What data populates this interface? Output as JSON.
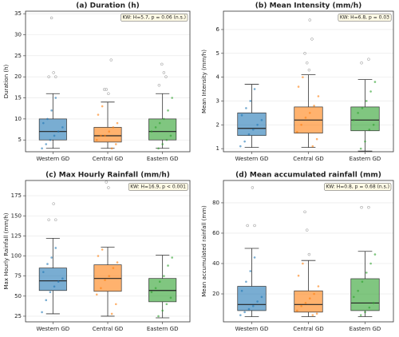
{
  "chart_data": [
    {
      "type": "box",
      "title": "(a) Duration (h)",
      "ylabel": "Duration (h)",
      "annotation": "KW: H=5.7, p = 0.06 (n.s.)",
      "categories": [
        "Western GD",
        "Central GD",
        "Eastern GD"
      ],
      "colors": [
        "#1f77b4",
        "#ff7f0e",
        "#2ca02c"
      ],
      "ylim": [
        2.2,
        35.6
      ],
      "yticks": [
        5,
        10,
        15,
        20,
        25,
        30,
        35
      ],
      "grid": true,
      "boxes": [
        {
          "whislo": 3,
          "q1": 5,
          "med": 7,
          "q3": 10,
          "whishi": 16,
          "outliers": [
            20,
            20,
            21,
            34
          ],
          "points": [
            3,
            4,
            5,
            6,
            7,
            8,
            9,
            10,
            12,
            15
          ]
        },
        {
          "whislo": 3,
          "q1": 4.5,
          "med": 6,
          "q3": 8,
          "whishi": 14,
          "outliers": [
            16,
            17,
            17,
            24
          ],
          "points": [
            3,
            4,
            5,
            6,
            6,
            7,
            8,
            9,
            11,
            13
          ]
        },
        {
          "whislo": 3,
          "q1": 5,
          "med": 7,
          "q3": 10,
          "whishi": 16,
          "outliers": [
            18,
            20,
            21,
            23
          ],
          "points": [
            3,
            4,
            5,
            6,
            7,
            8,
            9,
            10,
            12,
            15
          ]
        }
      ]
    },
    {
      "type": "box",
      "title": "(b) Mean Intensity (mm/h)",
      "ylabel": "Mean Intensity (mm/h)",
      "annotation": "KW: H=6.8, p = 0.03",
      "categories": [
        "Western GD",
        "Central GD",
        "Eastern GD"
      ],
      "colors": [
        "#1f77b4",
        "#ff7f0e",
        "#2ca02c"
      ],
      "ylim": [
        0.87,
        6.77
      ],
      "yticks": [
        1,
        2,
        3,
        4,
        5,
        6
      ],
      "grid": true,
      "boxes": [
        {
          "whislo": 1.05,
          "q1": 1.55,
          "med": 1.85,
          "q3": 2.5,
          "whishi": 3.7,
          "outliers": [],
          "points": [
            1.1,
            1.3,
            1.6,
            1.8,
            2.0,
            2.2,
            2.4,
            2.7,
            3.0,
            3.5
          ]
        },
        {
          "whislo": 1.05,
          "q1": 1.65,
          "med": 2.2,
          "q3": 2.75,
          "whishi": 4.1,
          "outliers": [
            4.3,
            4.6,
            5.0,
            5.6,
            6.4
          ],
          "points": [
            1.1,
            1.4,
            1.7,
            2.0,
            2.3,
            2.5,
            2.8,
            3.2,
            3.6,
            4.0
          ]
        },
        {
          "whislo": 0.9,
          "q1": 1.75,
          "med": 2.2,
          "q3": 2.75,
          "whishi": 3.9,
          "outliers": [
            4.6,
            4.75
          ],
          "points": [
            1.0,
            1.3,
            1.8,
            2.0,
            2.2,
            2.5,
            2.7,
            3.0,
            3.4,
            3.8
          ]
        }
      ]
    },
    {
      "type": "box",
      "title": "(c) Max Hourly Rainfall (mm/h)",
      "ylabel": "Max Hourly Rainfall (mm/h)",
      "annotation": "KW: H=16.9, p < 0.001",
      "categories": [
        "Western GD",
        "Central GD",
        "Eastern GD"
      ],
      "colors": [
        "#1f77b4",
        "#ff7f0e",
        "#2ca02c"
      ],
      "ylim": [
        18,
        194
      ],
      "yticks": [
        25,
        50,
        75,
        100,
        125,
        150,
        175
      ],
      "grid": true,
      "boxes": [
        {
          "whislo": 28,
          "q1": 57,
          "med": 69,
          "q3": 85,
          "whishi": 122,
          "outliers": [
            145,
            145,
            165
          ],
          "points": [
            30,
            45,
            55,
            62,
            68,
            72,
            80,
            90,
            98,
            110
          ]
        },
        {
          "whislo": 25,
          "q1": 56,
          "med": 72,
          "q3": 89,
          "whishi": 111,
          "outliers": [
            185,
            192
          ],
          "points": [
            28,
            40,
            52,
            60,
            70,
            75,
            85,
            92,
            100,
            108
          ]
        },
        {
          "whislo": 23,
          "q1": 43,
          "med": 57,
          "q3": 72,
          "whishi": 101,
          "outliers": [],
          "points": [
            25,
            32,
            40,
            48,
            55,
            60,
            68,
            75,
            88,
            98
          ]
        }
      ]
    },
    {
      "type": "box",
      "title": "(d) Mean accumulated rainfall (mm)",
      "ylabel": "Mean accumulated rainfall (mm)",
      "annotation": "KW: H=0.8, p = 0.68 (n.s.)",
      "categories": [
        "Western GD",
        "Central GD",
        "Eastern GD"
      ],
      "colors": [
        "#1f77b4",
        "#ff7f0e",
        "#2ca02c"
      ],
      "ylim": [
        1.6,
        94.7
      ],
      "yticks": [
        20,
        40,
        60,
        80
      ],
      "grid": true,
      "boxes": [
        {
          "whislo": 5,
          "q1": 9,
          "med": 13,
          "q3": 25,
          "whishi": 50,
          "outliers": [
            65,
            65,
            90
          ],
          "points": [
            6,
            8,
            10,
            12,
            15,
            18,
            22,
            28,
            35,
            44
          ]
        },
        {
          "whislo": 5,
          "q1": 8,
          "med": 13,
          "q3": 22,
          "whishi": 42,
          "outliers": [
            46,
            62,
            74
          ],
          "points": [
            6,
            7,
            9,
            12,
            14,
            17,
            20,
            25,
            32,
            40
          ]
        },
        {
          "whislo": 5,
          "q1": 9,
          "med": 14,
          "q3": 30,
          "whishi": 48,
          "outliers": [
            77,
            77
          ],
          "points": [
            6,
            8,
            11,
            14,
            18,
            22,
            28,
            34,
            40,
            46
          ]
        }
      ]
    }
  ]
}
